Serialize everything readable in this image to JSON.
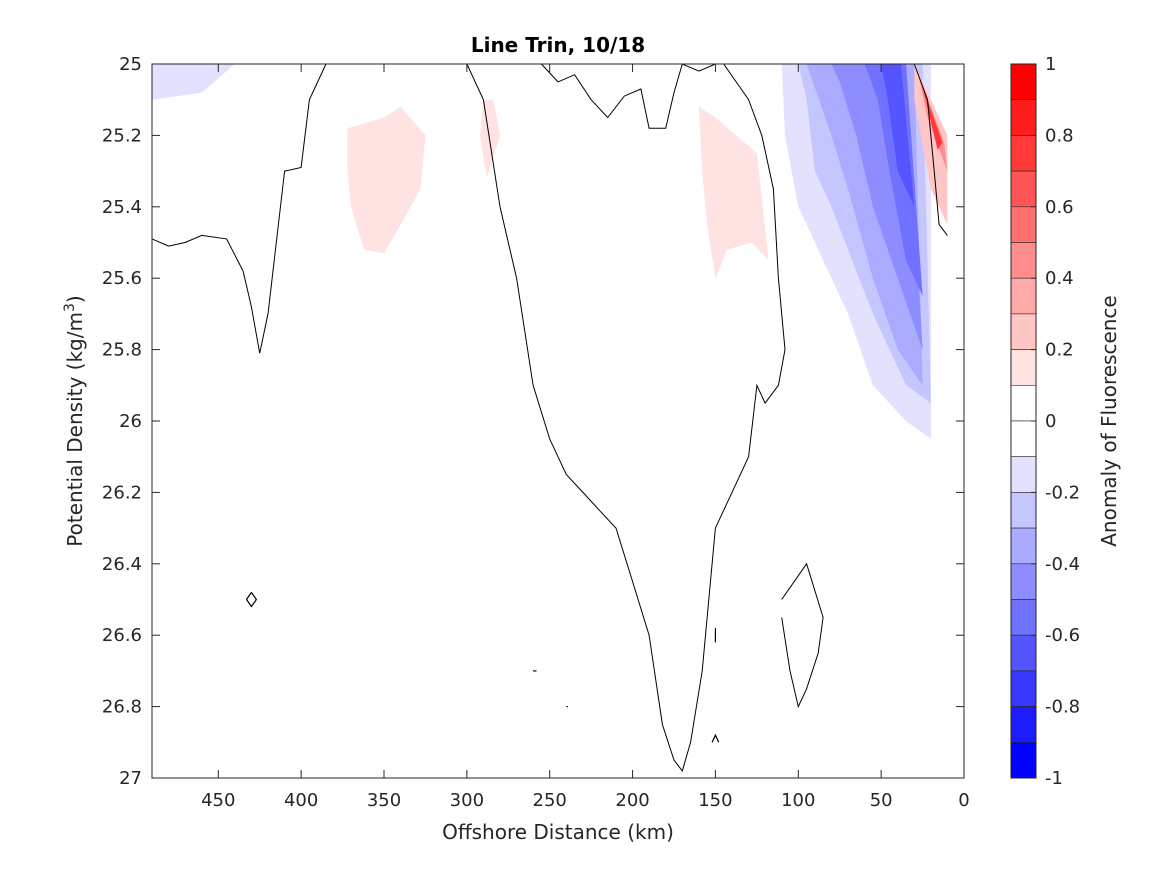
{
  "chart_data": {
    "type": "contour",
    "title": "Line Trin, 10/18",
    "xlabel": "Offshore Distance (km)",
    "ylabel_main": "Potential Density (kg/m",
    "ylabel_sup": "3",
    "ylabel_tail": ")",
    "xlim": [
      490,
      0
    ],
    "ylim": [
      25,
      27
    ],
    "x_reversed": true,
    "y_reversed": true,
    "x_ticks": [
      450,
      400,
      350,
      300,
      250,
      200,
      150,
      100,
      50,
      0
    ],
    "y_ticks": [
      25,
      25.2,
      25.4,
      25.6,
      25.8,
      26,
      26.2,
      26.4,
      26.6,
      26.8,
      27
    ],
    "y_tick_labels": [
      "25",
      "25.2",
      "25.4",
      "25.6",
      "25.8",
      "26",
      "26.2",
      "26.4",
      "26.6",
      "26.8",
      "27"
    ],
    "colorbar": {
      "label": "Anomaly of Fluorescence",
      "range": [
        -1,
        1
      ],
      "ticks": [
        1,
        0.8,
        0.6,
        0.4,
        0.2,
        0,
        -0.2,
        -0.4,
        -0.6,
        -0.8,
        -1
      ],
      "tick_labels": [
        "1",
        "0.8",
        "0.6",
        "0.4",
        "0.2",
        "0",
        "-0.2",
        "-0.4",
        "-0.6",
        "-0.8",
        "-1"
      ],
      "levels": [
        {
          "from": 0.9,
          "to": 1.0,
          "color": "#ff0000"
        },
        {
          "from": 0.8,
          "to": 0.9,
          "color": "#ff1c1c"
        },
        {
          "from": 0.7,
          "to": 0.8,
          "color": "#ff3838"
        },
        {
          "from": 0.6,
          "to": 0.7,
          "color": "#ff5555"
        },
        {
          "from": 0.5,
          "to": 0.6,
          "color": "#ff7171"
        },
        {
          "from": 0.4,
          "to": 0.5,
          "color": "#ff8d8d"
        },
        {
          "from": 0.3,
          "to": 0.4,
          "color": "#ffaaaa"
        },
        {
          "from": 0.2,
          "to": 0.3,
          "color": "#ffc6c6"
        },
        {
          "from": 0.1,
          "to": 0.2,
          "color": "#ffe2e2"
        },
        {
          "from": 0.0,
          "to": 0.1,
          "color": "#ffffff"
        },
        {
          "from": -0.1,
          "to": 0.0,
          "color": "#ffffff"
        },
        {
          "from": -0.2,
          "to": -0.1,
          "color": "#e2e2ff"
        },
        {
          "from": -0.3,
          "to": -0.2,
          "color": "#c6c6ff"
        },
        {
          "from": -0.4,
          "to": -0.3,
          "color": "#aaaaff"
        },
        {
          "from": -0.5,
          "to": -0.4,
          "color": "#8d8dff"
        },
        {
          "from": -0.6,
          "to": -0.5,
          "color": "#7171ff"
        },
        {
          "from": -0.7,
          "to": -0.6,
          "color": "#5555ff"
        },
        {
          "from": -0.8,
          "to": -0.7,
          "color": "#3838ff"
        },
        {
          "from": -0.9,
          "to": -0.8,
          "color": "#1c1cff"
        },
        {
          "from": -1.0,
          "to": -0.9,
          "color": "#0000ff"
        }
      ]
    },
    "filled_regions": [
      {
        "level": -0.1,
        "points": [
          [
            490,
            25
          ],
          [
            385,
            25
          ],
          [
            400,
            25.15
          ],
          [
            430,
            25.3
          ],
          [
            490,
            25.3
          ]
        ]
      },
      {
        "level": -0.2,
        "points": [
          [
            490,
            25
          ],
          [
            440,
            25
          ],
          [
            460,
            25.08
          ],
          [
            490,
            25.1
          ]
        ]
      },
      {
        "level": 0.1,
        "points": [
          [
            372,
            25.18
          ],
          [
            350,
            25.15
          ],
          [
            340,
            25.12
          ],
          [
            325,
            25.2
          ],
          [
            328,
            25.35
          ],
          [
            340,
            25.45
          ],
          [
            350,
            25.53
          ],
          [
            362,
            25.52
          ],
          [
            370,
            25.4
          ],
          [
            372,
            25.3
          ]
        ]
      },
      {
        "level": 0.1,
        "points": [
          [
            290,
            25.1
          ],
          [
            284,
            25.1
          ],
          [
            280,
            25.2
          ],
          [
            288,
            25.32
          ],
          [
            292,
            25.2
          ]
        ]
      },
      {
        "level": 0.1,
        "points": [
          [
            160,
            25.12
          ],
          [
            150,
            25.15
          ],
          [
            125,
            25.25
          ],
          [
            118,
            25.55
          ],
          [
            128,
            25.5
          ],
          [
            143,
            25.52
          ],
          [
            150,
            25.6
          ],
          [
            155,
            25.45
          ],
          [
            158,
            25.3
          ]
        ]
      },
      {
        "level": -0.1,
        "points": [
          [
            122,
            25
          ],
          [
            0,
            25
          ],
          [
            0,
            26.05
          ],
          [
            20,
            26.15
          ],
          [
            40,
            26.1
          ],
          [
            55,
            26.05
          ],
          [
            70,
            25.8
          ],
          [
            85,
            25.7
          ],
          [
            100,
            25.55
          ],
          [
            115,
            25.4
          ],
          [
            118,
            25.2
          ]
        ]
      },
      {
        "level": -0.2,
        "points": [
          [
            110,
            25
          ],
          [
            20,
            25
          ],
          [
            20,
            26.05
          ],
          [
            35,
            26.0
          ],
          [
            55,
            25.9
          ],
          [
            70,
            25.7
          ],
          [
            90,
            25.5
          ],
          [
            100,
            25.4
          ],
          [
            108,
            25.2
          ]
        ]
      },
      {
        "level": -0.3,
        "points": [
          [
            100,
            25
          ],
          [
            25,
            25
          ],
          [
            20,
            25.95
          ],
          [
            35,
            25.9
          ],
          [
            55,
            25.7
          ],
          [
            80,
            25.4
          ],
          [
            90,
            25.3
          ],
          [
            95,
            25.1
          ]
        ]
      },
      {
        "level": -0.4,
        "points": [
          [
            95,
            25
          ],
          [
            30,
            25
          ],
          [
            25,
            25.9
          ],
          [
            40,
            25.8
          ],
          [
            55,
            25.6
          ],
          [
            70,
            25.35
          ],
          [
            80,
            25.2
          ]
        ]
      },
      {
        "level": -0.5,
        "points": [
          [
            80,
            25
          ],
          [
            35,
            25
          ],
          [
            25,
            25.8
          ],
          [
            40,
            25.6
          ],
          [
            55,
            25.4
          ],
          [
            65,
            25.2
          ],
          [
            75,
            25.05
          ]
        ]
      },
      {
        "level": -0.6,
        "points": [
          [
            60,
            25
          ],
          [
            35,
            25
          ],
          [
            25,
            25.65
          ],
          [
            35,
            25.55
          ],
          [
            45,
            25.3
          ],
          [
            52,
            25.1
          ]
        ]
      },
      {
        "level": -0.7,
        "points": [
          [
            50,
            25
          ],
          [
            38,
            25
          ],
          [
            30,
            25.4
          ],
          [
            40,
            25.3
          ],
          [
            46,
            25.1
          ]
        ]
      },
      {
        "level": 0.2,
        "points": [
          [
            30,
            25
          ],
          [
            10,
            25.2
          ],
          [
            10,
            25.45
          ],
          [
            20,
            25.35
          ],
          [
            30,
            25.1
          ]
        ]
      },
      {
        "level": 0.4,
        "points": [
          [
            28,
            25.02
          ],
          [
            12,
            25.22
          ],
          [
            10,
            25.3
          ],
          [
            22,
            25.15
          ]
        ]
      },
      {
        "level": 0.7,
        "points": [
          [
            26,
            25.05
          ],
          [
            13,
            25.22
          ],
          [
            16,
            25.24
          ],
          [
            22,
            25.12
          ]
        ]
      }
    ],
    "contour_lines": [
      {
        "level": 0,
        "points": [
          [
            490,
            25.49
          ],
          [
            480,
            25.51
          ],
          [
            470,
            25.5
          ],
          [
            460,
            25.48
          ],
          [
            445,
            25.49
          ],
          [
            435,
            25.58
          ],
          [
            430,
            25.68
          ],
          [
            425,
            25.81
          ],
          [
            420,
            25.7
          ],
          [
            415,
            25.5
          ],
          [
            410,
            25.3
          ],
          [
            400,
            25.29
          ],
          [
            395,
            25.1
          ],
          [
            385,
            25
          ]
        ]
      },
      {
        "level": 0,
        "points": [
          [
            255,
            25
          ],
          [
            245,
            25.05
          ],
          [
            235,
            25.03
          ],
          [
            225,
            25.1
          ],
          [
            215,
            25.15
          ],
          [
            205,
            25.09
          ],
          [
            195,
            25.07
          ],
          [
            190,
            25.18
          ],
          [
            180,
            25.18
          ],
          [
            175,
            25.08
          ],
          [
            170,
            25
          ],
          [
            160,
            25.02
          ],
          [
            150,
            25
          ],
          [
            145,
            25
          ],
          [
            130,
            25.1
          ],
          [
            122,
            25.2
          ],
          [
            115,
            25.35
          ],
          [
            112,
            25.6
          ],
          [
            108,
            25.8
          ],
          [
            112,
            25.9
          ],
          [
            120,
            25.95
          ],
          [
            125,
            25.9
          ],
          [
            130,
            26.1
          ],
          [
            140,
            26.2
          ],
          [
            150,
            26.3
          ],
          [
            158,
            26.7
          ],
          [
            165,
            26.9
          ],
          [
            170,
            26.98
          ],
          [
            175,
            26.95
          ],
          [
            182,
            26.85
          ],
          [
            190,
            26.6
          ],
          [
            200,
            26.45
          ],
          [
            210,
            26.3
          ],
          [
            220,
            26.25
          ],
          [
            230,
            26.2
          ],
          [
            240,
            26.15
          ],
          [
            250,
            26.05
          ],
          [
            260,
            25.9
          ],
          [
            270,
            25.6
          ],
          [
            280,
            25.4
          ],
          [
            290,
            25.1
          ],
          [
            300,
            25.0
          ]
        ]
      },
      {
        "level": 0,
        "points": [
          [
            110,
            26.5
          ],
          [
            95,
            26.4
          ],
          [
            85,
            26.55
          ],
          [
            88,
            26.65
          ],
          [
            95,
            26.75
          ],
          [
            100,
            26.8
          ],
          [
            105,
            26.7
          ],
          [
            110,
            26.55
          ]
        ]
      },
      {
        "level": 0,
        "points": [
          [
            30,
            25
          ],
          [
            22,
            25.1
          ],
          [
            18,
            25.3
          ],
          [
            15,
            25.45
          ],
          [
            10,
            25.48
          ]
        ]
      }
    ],
    "small_contours": [
      {
        "points": [
          [
            430,
            26.48
          ],
          [
            427,
            26.5
          ],
          [
            430,
            26.52
          ],
          [
            433,
            26.5
          ],
          [
            430,
            26.48
          ]
        ]
      },
      {
        "points": [
          [
            150,
            26.58
          ],
          [
            150,
            26.62
          ]
        ]
      },
      {
        "points": [
          [
            260,
            26.7
          ],
          [
            258,
            26.7
          ]
        ]
      },
      {
        "points": [
          [
            240,
            26.8
          ],
          [
            239,
            26.8
          ]
        ]
      },
      {
        "points": [
          [
            152,
            26.9
          ],
          [
            150,
            26.88
          ],
          [
            148,
            26.9
          ]
        ]
      }
    ]
  }
}
